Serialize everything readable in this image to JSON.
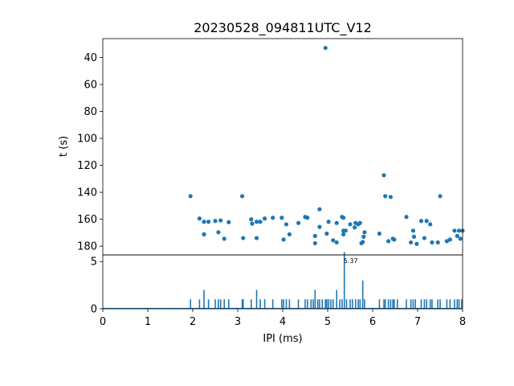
{
  "chart_data": [
    {
      "type": "scatter",
      "title": "20230528_094811UTC_V12",
      "ylabel": "t (s)",
      "y_inverted": true,
      "xlim": [
        0,
        8
      ],
      "ylim": [
        186.5,
        26
      ],
      "yticks": [
        "40",
        "60",
        "80",
        "100",
        "120",
        "140",
        "160",
        "180"
      ],
      "color": "#1f77b4",
      "points": [
        [
          1.95,
          142.9
        ],
        [
          2.15,
          159.5
        ],
        [
          2.25,
          171.2
        ],
        [
          2.25,
          161.9
        ],
        [
          2.35,
          161.9
        ],
        [
          2.5,
          161.3
        ],
        [
          2.57,
          169.7
        ],
        [
          2.62,
          160.9
        ],
        [
          2.7,
          174.5
        ],
        [
          2.8,
          162.2
        ],
        [
          3.1,
          142.9
        ],
        [
          3.12,
          174
        ],
        [
          3.3,
          160.1
        ],
        [
          3.32,
          163.3
        ],
        [
          3.42,
          174
        ],
        [
          3.42,
          161.9
        ],
        [
          3.5,
          161.9
        ],
        [
          3.6,
          159.5
        ],
        [
          3.78,
          158.9
        ],
        [
          3.98,
          158.9
        ],
        [
          4.02,
          175.1
        ],
        [
          4.08,
          163.8
        ],
        [
          4.15,
          171.2
        ],
        [
          4.35,
          162.8
        ],
        [
          4.5,
          158.3
        ],
        [
          4.55,
          158.9
        ],
        [
          4.72,
          172.4
        ],
        [
          4.72,
          177.8
        ],
        [
          4.82,
          152.6
        ],
        [
          4.82,
          165.7
        ],
        [
          4.95,
          32.9
        ],
        [
          4.98,
          170.7
        ],
        [
          5.02,
          161.9
        ],
        [
          5.12,
          175.7
        ],
        [
          5.2,
          177.2
        ],
        [
          5.2,
          162.8
        ],
        [
          5.32,
          158.3
        ],
        [
          5.35,
          158.9
        ],
        [
          5.35,
          168.5
        ],
        [
          5.35,
          171.2
        ],
        [
          5.4,
          168.5
        ],
        [
          5.5,
          163.8
        ],
        [
          5.6,
          166.1
        ],
        [
          5.62,
          162.8
        ],
        [
          5.68,
          163.8
        ],
        [
          5.72,
          162.8
        ],
        [
          5.75,
          177.8
        ],
        [
          5.78,
          176.9
        ],
        [
          5.8,
          173
        ],
        [
          5.82,
          169.7
        ],
        [
          6.15,
          170.7
        ],
        [
          6.25,
          127.4
        ],
        [
          6.28,
          142.9
        ],
        [
          6.35,
          176.3
        ],
        [
          6.4,
          143.5
        ],
        [
          6.45,
          174.5
        ],
        [
          6.48,
          175.1
        ],
        [
          6.75,
          158.3
        ],
        [
          6.85,
          177.2
        ],
        [
          6.9,
          168.5
        ],
        [
          6.92,
          173
        ],
        [
          6.98,
          178.3
        ],
        [
          7.08,
          161.3
        ],
        [
          7.15,
          174
        ],
        [
          7.2,
          161.3
        ],
        [
          7.28,
          163.8
        ],
        [
          7.32,
          177.2
        ],
        [
          7.45,
          177.2
        ],
        [
          7.5,
          142.9
        ],
        [
          7.65,
          176.3
        ],
        [
          7.72,
          175.1
        ],
        [
          7.82,
          168.5
        ],
        [
          7.88,
          172.4
        ],
        [
          7.92,
          168.5
        ],
        [
          7.95,
          174.5
        ],
        [
          8.0,
          168.5
        ]
      ]
    },
    {
      "type": "bar",
      "xlabel": "IPI (ms)",
      "xlim": [
        0,
        8
      ],
      "ylim": [
        0,
        5.7
      ],
      "xticks": [
        "0",
        "1",
        "2",
        "3",
        "4",
        "5",
        "6",
        "7",
        "8"
      ],
      "yticks": [
        "0",
        "5"
      ],
      "color": "#1f77b4",
      "peak_label": "5.37",
      "peak_x": 5.37,
      "bars": [
        [
          1.95,
          1
        ],
        [
          2.15,
          1
        ],
        [
          2.25,
          2
        ],
        [
          2.35,
          1
        ],
        [
          2.5,
          1
        ],
        [
          2.57,
          1
        ],
        [
          2.62,
          1
        ],
        [
          2.7,
          1
        ],
        [
          2.8,
          1
        ],
        [
          3.1,
          1
        ],
        [
          3.12,
          1
        ],
        [
          3.3,
          1
        ],
        [
          3.42,
          2
        ],
        [
          3.5,
          1
        ],
        [
          3.6,
          1
        ],
        [
          3.78,
          1
        ],
        [
          3.98,
          1
        ],
        [
          4.02,
          1
        ],
        [
          4.08,
          1
        ],
        [
          4.15,
          1
        ],
        [
          4.35,
          1
        ],
        [
          4.5,
          1
        ],
        [
          4.55,
          1
        ],
        [
          4.63,
          1
        ],
        [
          4.68,
          1
        ],
        [
          4.72,
          2
        ],
        [
          4.78,
          1
        ],
        [
          4.82,
          1
        ],
        [
          4.88,
          1
        ],
        [
          4.95,
          1
        ],
        [
          4.98,
          1
        ],
        [
          5.02,
          1
        ],
        [
          5.07,
          1
        ],
        [
          5.12,
          1
        ],
        [
          5.2,
          2
        ],
        [
          5.27,
          1
        ],
        [
          5.32,
          1
        ],
        [
          5.37,
          6
        ],
        [
          5.42,
          1
        ],
        [
          5.5,
          1
        ],
        [
          5.55,
          1
        ],
        [
          5.62,
          1
        ],
        [
          5.68,
          1
        ],
        [
          5.72,
          1
        ],
        [
          5.78,
          3
        ],
        [
          5.82,
          1
        ],
        [
          6.15,
          1
        ],
        [
          6.25,
          1
        ],
        [
          6.28,
          1
        ],
        [
          6.35,
          1
        ],
        [
          6.4,
          1
        ],
        [
          6.45,
          1
        ],
        [
          6.48,
          1
        ],
        [
          6.55,
          1
        ],
        [
          6.75,
          1
        ],
        [
          6.85,
          1
        ],
        [
          6.9,
          1
        ],
        [
          6.95,
          1
        ],
        [
          7.08,
          1
        ],
        [
          7.15,
          1
        ],
        [
          7.2,
          1
        ],
        [
          7.28,
          1
        ],
        [
          7.32,
          1
        ],
        [
          7.45,
          1
        ],
        [
          7.5,
          1
        ],
        [
          7.65,
          1
        ],
        [
          7.72,
          1
        ],
        [
          7.82,
          1
        ],
        [
          7.88,
          1
        ],
        [
          7.92,
          1
        ],
        [
          7.98,
          1
        ]
      ]
    }
  ]
}
